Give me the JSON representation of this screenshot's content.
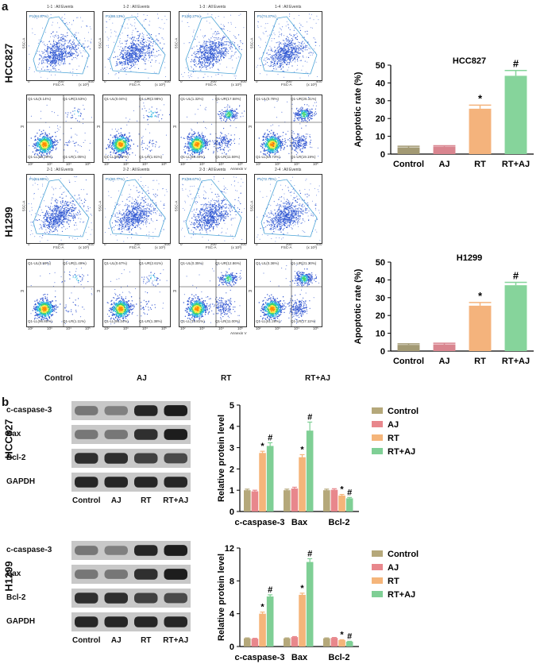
{
  "panel_a_letter": "a",
  "panel_b_letter": "b",
  "flow": {
    "hcc827": {
      "row_label": "HCC827",
      "scatter_titles": [
        "1-1 : All Events",
        "1-2 : All Events",
        "1-3 : All Events",
        "1-4 : All Events"
      ],
      "gate_labels": [
        "P1(84.97%)",
        "P1(88.13%)",
        "P1(80.27%)",
        "P1(74.37%)"
      ],
      "quad_ul": [
        "Q1-UL(0.14%)",
        "Q1-UL(0.04%)",
        "Q1-UL(1.32%)",
        "Q1-UL(0.78%)"
      ],
      "quad_ur": [
        "Q1-UR(3.53%)",
        "Q1-UR(2.98%)",
        "Q1-UR(17.58%)",
        "Q1-UR(25.31%)"
      ],
      "quad_ll": [
        "Q1-LL(95.28%)",
        "Q1-LL(95.07%)",
        "Q1-LL(69.40%)",
        "Q1-LL(54.73%)"
      ],
      "quad_lr": [
        "Q1-LR(1.05%)",
        "Q1-LR(1.91%)",
        "Q1-LR(11.59%)",
        "Q1-LR(19.19%)"
      ]
    },
    "h1299": {
      "row_label": "H1299",
      "scatter_titles": [
        "2-1 : All Events",
        "2-2 : All Events",
        "2-3 : All Events",
        "2-4 : All Events"
      ],
      "gate_labels": [
        "P1(84.99%)",
        "P1(80.77%)",
        "P1(59.67%)",
        "P1(72.70%)"
      ],
      "quad_ul": [
        "Q1-UL(0.59%)",
        "Q1-UL(0.67%)",
        "Q1-UL(0.35%)",
        "Q1-UL(0.36%)"
      ],
      "quad_ur": [
        "Q1-UR(1.49%)",
        "Q1-UR(2.61%)",
        "Q1-UR(12.86%)",
        "Q1-UR(21.30%)"
      ],
      "quad_ll": [
        "Q1-LL(96.85%)",
        "Q1-LL(95.34%)",
        "Q1-LL(75.81%)",
        "Q1-LL(61.28%)"
      ],
      "quad_lr": [
        "Q1-LR(1.11%)",
        "Q1-LR(1.38%)",
        "Q1-LR(11.00%)",
        "Q1-LR(17.11%)"
      ]
    },
    "x_axis_scatter": "FSC-A",
    "y_axis_scatter": "SSC-A",
    "x_axis_quad": "Annexin V",
    "y_axis_quad": "PI",
    "scatter_x_ticks": [
      "0",
      "200",
      "400"
    ],
    "scatter_y_ticks": [
      "0",
      "200",
      "400"
    ],
    "scatter_units": "(x 10³)",
    "quad_ticks": [
      "10²",
      "10³",
      "10⁴",
      "10⁵"
    ],
    "condition_labels": [
      "Control",
      "AJ",
      "RT",
      "RT+AJ"
    ]
  },
  "western": {
    "hcc827": {
      "row_label": "HCC827",
      "proteins": [
        "c-caspase-3",
        "Bax",
        "Bcl-2",
        "GAPDH"
      ],
      "lanes": [
        "Control",
        "AJ",
        "RT",
        "RT+AJ"
      ]
    },
    "h1299": {
      "row_label": "H1299",
      "proteins": [
        "c-caspase-3",
        "Bax",
        "Bcl-2",
        "GAPDH"
      ],
      "lanes": [
        "Control",
        "AJ",
        "RT",
        "RT+AJ"
      ]
    }
  },
  "colors": {
    "control": "#b5a87a",
    "aj": "#e8878c",
    "rt": "#f5b57a",
    "rtaj": "#7fcf95",
    "control_a": "#a39a74",
    "aj_a": "#d9858f",
    "rt_a": "#f4b37c",
    "rtaj_a": "#86d49b"
  },
  "chart_data": [
    {
      "type": "bar",
      "title": "HCC827",
      "ylabel": "Apoptotic rate (%)",
      "categories": [
        "Control",
        "AJ",
        "RT",
        "RT+AJ"
      ],
      "values": [
        3.8,
        4.2,
        25.5,
        44
      ],
      "errors": [
        0.6,
        0.5,
        2.0,
        3.0
      ],
      "annotations": [
        "",
        "",
        "*",
        "#"
      ],
      "ylim": [
        0,
        50
      ],
      "yticks": [
        0,
        10,
        20,
        30,
        40,
        50
      ]
    },
    {
      "type": "bar",
      "title": "H1299",
      "ylabel": "Apoptotic rate (%)",
      "categories": [
        "Control",
        "AJ",
        "RT",
        "RT+AJ"
      ],
      "values": [
        3.5,
        3.8,
        25.5,
        37
      ],
      "errors": [
        0.6,
        0.6,
        1.8,
        1.6
      ],
      "annotations": [
        "",
        "",
        "*",
        "#"
      ],
      "ylim": [
        0,
        50
      ],
      "yticks": [
        0,
        10,
        20,
        30,
        40,
        50
      ]
    },
    {
      "type": "bar",
      "title": "",
      "ylabel": "Relative protein level",
      "categories": [
        "c-caspase-3",
        "Bax",
        "Bcl-2"
      ],
      "series": [
        {
          "name": "Control",
          "values": [
            1.0,
            1.0,
            1.0
          ],
          "errors": [
            0.05,
            0.05,
            0.05
          ],
          "annotations": [
            "",
            "",
            ""
          ]
        },
        {
          "name": "AJ",
          "values": [
            0.95,
            1.08,
            1.02
          ],
          "errors": [
            0.05,
            0.06,
            0.05
          ],
          "annotations": [
            "",
            "",
            ""
          ]
        },
        {
          "name": "RT",
          "values": [
            2.75,
            2.55,
            0.75
          ],
          "errors": [
            0.08,
            0.12,
            0.05
          ],
          "annotations": [
            "*",
            "*",
            "*"
          ]
        },
        {
          "name": "RT+AJ",
          "values": [
            3.08,
            3.8,
            0.62
          ],
          "errors": [
            0.15,
            0.4,
            0.04
          ],
          "annotations": [
            "#",
            "#",
            "#"
          ]
        }
      ],
      "ylim": [
        0,
        5
      ],
      "yticks": [
        0,
        1,
        2,
        3,
        4,
        5
      ],
      "legend": "top-right"
    },
    {
      "type": "bar",
      "title": "",
      "ylabel": "Relative protein level",
      "categories": [
        "c-caspase-3",
        "Bax",
        "Bcl-2"
      ],
      "series": [
        {
          "name": "Control",
          "values": [
            1.0,
            1.0,
            1.0
          ],
          "errors": [
            0.05,
            0.05,
            0.05
          ],
          "annotations": [
            "",
            "",
            ""
          ]
        },
        {
          "name": "AJ",
          "values": [
            0.95,
            1.15,
            1.05
          ],
          "errors": [
            0.05,
            0.06,
            0.05
          ],
          "annotations": [
            "",
            "",
            ""
          ]
        },
        {
          "name": "RT",
          "values": [
            4.0,
            6.3,
            0.78
          ],
          "errors": [
            0.2,
            0.2,
            0.05
          ],
          "annotations": [
            "*",
            "*",
            "*"
          ]
        },
        {
          "name": "RT+AJ",
          "values": [
            6.1,
            10.3,
            0.6
          ],
          "errors": [
            0.2,
            0.4,
            0.04
          ],
          "annotations": [
            "#",
            "#",
            "#"
          ]
        }
      ],
      "ylim": [
        0,
        12
      ],
      "yticks": [
        0,
        4,
        8,
        12
      ],
      "legend": "top-right"
    }
  ]
}
